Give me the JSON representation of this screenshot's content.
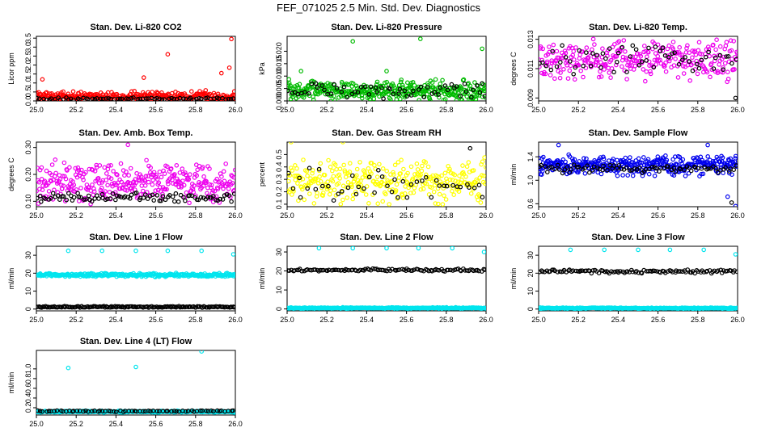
{
  "figure": {
    "main_title": "FEF_071025  2.5 Min. Std. Dev. Diagnostics",
    "colors": {
      "co2": "#ff0000",
      "pressure": "#00bb00",
      "temp": "#ee00ee",
      "rh": "#ffff00",
      "flow": "#0000ee",
      "line": "#00e5ee",
      "overlay": "#000000",
      "axis": "#000000"
    }
  },
  "chart_data": [
    {
      "type": "scatter",
      "title": "Stan. Dev. Li-820 CO2",
      "ylabel": "Licor ppm",
      "xlim": [
        25.0,
        26.0
      ],
      "ylim": [
        0.0,
        3.6
      ],
      "xticks": [
        "25.0",
        "25.2",
        "25.4",
        "25.6",
        "25.8",
        "26.0"
      ],
      "yticks": [
        {
          "v": 0.0,
          "t": "0.0"
        },
        {
          "v": 0.5,
          "t": "0.5"
        },
        {
          "v": 1.0,
          "t": "1.0"
        },
        {
          "v": 1.5,
          "t": "1.5"
        },
        {
          "v": 2.0,
          "t": "2.0"
        },
        {
          "v": 2.5,
          "t": "2.5"
        },
        {
          "v": 3.0,
          "t": "3.0"
        },
        {
          "v": 3.5,
          "t": "3.5"
        }
      ],
      "series": [
        {
          "name": "main",
          "color": "#ff0000",
          "base": 0.25,
          "spread": 0.35,
          "n": 320,
          "outliers": [
            [
              25.66,
              2.6
            ],
            [
              25.98,
              3.45
            ],
            [
              25.97,
              1.85
            ],
            [
              25.93,
              1.55
            ],
            [
              25.54,
              1.3
            ],
            [
              25.03,
              1.2
            ]
          ]
        },
        {
          "name": "overlay",
          "color": "#000000",
          "base": 0.12,
          "spread": 0.08,
          "n": 70,
          "outliers": []
        }
      ]
    },
    {
      "type": "scatter",
      "title": "Stan. Dev. Li-820 Pressure",
      "ylabel": "kPa",
      "xlim": [
        25.0,
        26.0
      ],
      "ylim": [
        0.0,
        0.026
      ],
      "xticks": [
        "25.0",
        "25.2",
        "25.4",
        "25.6",
        "25.8",
        "26.0"
      ],
      "yticks": [
        {
          "v": 0.0,
          "t": "0.000"
        },
        {
          "v": 0.005,
          "t": "0.005"
        },
        {
          "v": 0.01,
          "t": "0.010"
        },
        {
          "v": 0.015,
          "t": "0.015"
        },
        {
          "v": 0.02,
          "t": "0.020"
        }
      ],
      "series": [
        {
          "name": "main",
          "color": "#00bb00",
          "base": 0.004,
          "spread": 0.005,
          "n": 380,
          "outliers": [
            [
              25.33,
              0.024
            ],
            [
              25.67,
              0.025
            ],
            [
              25.98,
              0.021
            ],
            [
              25.5,
              0.012
            ],
            [
              25.07,
              0.012
            ]
          ]
        },
        {
          "name": "overlay",
          "color": "#000000",
          "base": 0.004,
          "spread": 0.004,
          "n": 60,
          "outliers": [
            [
              25.98,
              0.007
            ]
          ]
        }
      ]
    },
    {
      "type": "scatter",
      "title": "Stan. Dev. Li-820 Temp.",
      "ylabel": "degrees C",
      "xlim": [
        25.0,
        26.0
      ],
      "ylim": [
        0.0088,
        0.0132
      ],
      "xticks": [
        "25.0",
        "25.2",
        "25.4",
        "25.6",
        "25.8",
        "26.0"
      ],
      "yticks": [
        {
          "v": 0.009,
          "t": "0.009"
        },
        {
          "v": 0.011,
          "t": "0.011"
        },
        {
          "v": 0.013,
          "t": "0.013"
        }
      ],
      "series": [
        {
          "name": "main",
          "color": "#ee00ee",
          "base": 0.0116,
          "spread": 0.0016,
          "n": 300,
          "outliers": []
        },
        {
          "name": "overlay",
          "color": "#000000",
          "base": 0.0117,
          "spread": 0.0012,
          "n": 60,
          "outliers": [
            [
              25.99,
              0.009
            ]
          ]
        }
      ]
    },
    {
      "type": "scatter",
      "title": "Stan. Dev. Amb. Box Temp.",
      "ylabel": "degrees C",
      "xlim": [
        25.0,
        26.0
      ],
      "ylim": [
        0.08,
        0.32
      ],
      "xticks": [
        "25.0",
        "25.2",
        "25.4",
        "25.6",
        "25.8",
        "26.0"
      ],
      "yticks": [
        {
          "v": 0.1,
          "t": "0.10"
        },
        {
          "v": 0.2,
          "t": "0.20"
        },
        {
          "v": 0.3,
          "t": "0.30"
        }
      ],
      "series": [
        {
          "name": "main",
          "color": "#ee00ee",
          "base": 0.17,
          "spread": 0.09,
          "n": 340,
          "outliers": [
            [
              25.46,
              0.31
            ]
          ]
        },
        {
          "name": "overlay",
          "color": "#000000",
          "base": 0.115,
          "spread": 0.02,
          "n": 90,
          "outliers": []
        }
      ]
    },
    {
      "type": "scatter",
      "title": "Stan. Dev. Gas Stream RH",
      "ylabel": "percent",
      "xlim": [
        25.0,
        26.0
      ],
      "ylim": [
        0.08,
        0.6
      ],
      "xticks": [
        "25.0",
        "25.2",
        "25.4",
        "25.6",
        "25.8",
        "26.0"
      ],
      "yticks": [
        {
          "v": 0.1,
          "t": "0.1"
        },
        {
          "v": 0.2,
          "t": "0.2"
        },
        {
          "v": 0.3,
          "t": "0.3"
        },
        {
          "v": 0.4,
          "t": "0.4"
        },
        {
          "v": 0.5,
          "t": "0.5"
        }
      ],
      "series": [
        {
          "name": "main",
          "color": "#ffff00",
          "base": 0.28,
          "spread": 0.2,
          "n": 320,
          "outliers": [
            [
              25.02,
              0.6
            ],
            [
              25.28,
              0.6
            ]
          ]
        },
        {
          "name": "overlay",
          "color": "#000000",
          "base": 0.25,
          "spread": 0.18,
          "n": 45,
          "outliers": [
            [
              25.92,
              0.55
            ]
          ]
        }
      ]
    },
    {
      "type": "scatter",
      "title": "Stan. Dev. Sample Flow",
      "ylabel": "ml/min",
      "xlim": [
        25.0,
        26.0
      ],
      "ylim": [
        0.55,
        1.65
      ],
      "xticks": [
        "25.0",
        "25.2",
        "25.4",
        "25.6",
        "25.8",
        "26.0"
      ],
      "yticks": [
        {
          "v": 0.6,
          "t": "0.6"
        },
        {
          "v": 1.0,
          "t": "1.0"
        },
        {
          "v": 1.4,
          "t": "1.4"
        }
      ],
      "series": [
        {
          "name": "main",
          "color": "#0000ee",
          "base": 1.25,
          "spread": 0.2,
          "n": 380,
          "outliers": [
            [
              25.1,
              1.6
            ],
            [
              25.85,
              1.6
            ],
            [
              25.99,
              0.56
            ],
            [
              25.95,
              0.72
            ]
          ]
        },
        {
          "name": "overlay",
          "color": "#000000",
          "base": 1.2,
          "spread": 0.08,
          "n": 80,
          "outliers": [
            [
              25.97,
              0.62
            ]
          ]
        }
      ]
    },
    {
      "type": "scatter",
      "title": "Stan. Dev. Line 1 Flow",
      "ylabel": "ml/min",
      "xlim": [
        25.0,
        26.0
      ],
      "ylim": [
        -1,
        35
      ],
      "xticks": [
        "25.0",
        "25.2",
        "25.4",
        "25.6",
        "25.8",
        "26.0"
      ],
      "yticks": [
        {
          "v": 0,
          "t": "0"
        },
        {
          "v": 10,
          "t": "10"
        },
        {
          "v": 20,
          "t": "20"
        },
        {
          "v": 30,
          "t": "30"
        }
      ],
      "series": [
        {
          "name": "main",
          "color": "#00e5ee",
          "base": 19,
          "spread": 1.2,
          "n": 320,
          "outliers": [
            [
              25.16,
              32.5
            ],
            [
              25.33,
              32.5
            ],
            [
              25.5,
              32.5
            ],
            [
              25.66,
              32.5
            ],
            [
              25.83,
              32.5
            ],
            [
              25.99,
              30.5
            ]
          ]
        },
        {
          "name": "overlay",
          "color": "#000000",
          "base": 1.2,
          "spread": 0.5,
          "n": 160,
          "outliers": []
        }
      ]
    },
    {
      "type": "scatter",
      "title": "Stan. Dev. Line 2 Flow",
      "ylabel": "ml/min",
      "xlim": [
        25.0,
        26.0
      ],
      "ylim": [
        -1,
        33
      ],
      "xticks": [
        "25.0",
        "25.2",
        "25.4",
        "25.6",
        "25.8",
        "26.0"
      ],
      "yticks": [
        {
          "v": 0,
          "t": "0"
        },
        {
          "v": 10,
          "t": "10"
        },
        {
          "v": 20,
          "t": "20"
        },
        {
          "v": 30,
          "t": "30"
        }
      ],
      "series": [
        {
          "name": "main",
          "color": "#00e5ee",
          "base": 0.5,
          "spread": 0.4,
          "n": 300,
          "outliers": [
            [
              25.16,
              32
            ],
            [
              25.33,
              32
            ],
            [
              25.5,
              32
            ],
            [
              25.66,
              32
            ],
            [
              25.83,
              32
            ],
            [
              25.99,
              30
            ]
          ]
        },
        {
          "name": "overlay",
          "color": "#000000",
          "base": 20.5,
          "spread": 0.8,
          "n": 110,
          "outliers": []
        }
      ]
    },
    {
      "type": "scatter",
      "title": "Stan. Dev. Line 3 Flow",
      "ylabel": "ml/min",
      "xlim": [
        25.0,
        26.0
      ],
      "ylim": [
        -1,
        35
      ],
      "xticks": [
        "25.0",
        "25.2",
        "25.4",
        "25.6",
        "25.8",
        "26.0"
      ],
      "yticks": [
        {
          "v": 0,
          "t": "0"
        },
        {
          "v": 10,
          "t": "10"
        },
        {
          "v": 20,
          "t": "20"
        },
        {
          "v": 30,
          "t": "30"
        }
      ],
      "series": [
        {
          "name": "main",
          "color": "#00e5ee",
          "base": 0.5,
          "spread": 0.4,
          "n": 300,
          "outliers": [
            [
              25.16,
              33
            ],
            [
              25.33,
              33
            ],
            [
              25.5,
              33
            ],
            [
              25.66,
              33
            ],
            [
              25.83,
              33
            ],
            [
              25.99,
              30.5
            ]
          ]
        },
        {
          "name": "overlay",
          "color": "#000000",
          "base": 21,
          "spread": 1.2,
          "n": 110,
          "outliers": []
        }
      ]
    },
    {
      "type": "scatter",
      "title": "Stan. Dev. Line 4 (LT) Flow",
      "ylabel": "ml/min",
      "xlim": [
        25.0,
        26.0
      ],
      "ylim": [
        0.05,
        1.38
      ],
      "xticks": [
        "25.0",
        "25.2",
        "25.4",
        "25.6",
        "25.8",
        "26.0"
      ],
      "yticks": [
        {
          "v": 0.2,
          "t": "0.2"
        },
        {
          "v": 0.4,
          "t": "0.4"
        },
        {
          "v": 0.6,
          "t": "0.6"
        },
        {
          "v": 0.8,
          "t": "0.8"
        },
        {
          "v": 1.0,
          "t": "1.0"
        }
      ],
      "series": [
        {
          "name": "main",
          "color": "#00e5ee",
          "base": 0.12,
          "spread": 0.02,
          "n": 300,
          "outliers": [
            [
              25.16,
              1.02
            ],
            [
              25.5,
              1.04
            ],
            [
              25.83,
              1.36
            ]
          ]
        },
        {
          "name": "overlay",
          "color": "#000000",
          "base": 0.13,
          "spread": 0.015,
          "n": 70,
          "outliers": []
        }
      ]
    }
  ]
}
